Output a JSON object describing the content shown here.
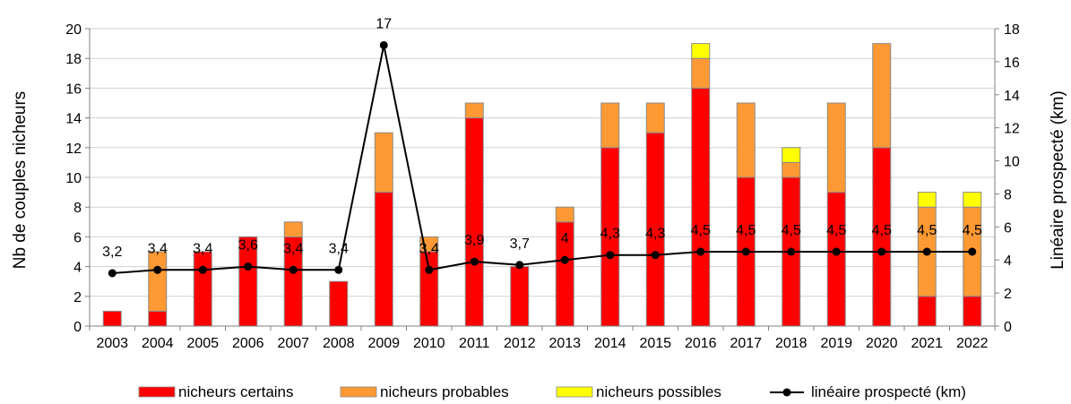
{
  "chart_data": {
    "type": "bar",
    "stacked": true,
    "categories": [
      "2003",
      "2004",
      "2005",
      "2006",
      "2007",
      "2008",
      "2009",
      "2010",
      "2011",
      "2012",
      "2013",
      "2014",
      "2015",
      "2016",
      "2017",
      "2018",
      "2019",
      "2020",
      "2021",
      "2022"
    ],
    "series": [
      {
        "name": "nicheurs certains",
        "type": "bar",
        "axis": "left",
        "color": "#ff0000",
        "values": [
          1,
          1,
          5,
          6,
          6,
          3,
          9,
          5,
          14,
          4,
          7,
          12,
          13,
          16,
          10,
          10,
          9,
          12,
          2,
          2
        ]
      },
      {
        "name": "nicheurs probables",
        "type": "bar",
        "axis": "left",
        "color": "#ff9933",
        "values": [
          0,
          4,
          0,
          0,
          1,
          0,
          4,
          1,
          1,
          0,
          1,
          3,
          2,
          2,
          5,
          1,
          6,
          7,
          6,
          6
        ]
      },
      {
        "name": "nicheurs possibles",
        "type": "bar",
        "axis": "left",
        "color": "#ffff00",
        "values": [
          0,
          0,
          0,
          0,
          0,
          0,
          0,
          0,
          0,
          0,
          0,
          0,
          0,
          1,
          0,
          1,
          0,
          0,
          1,
          1
        ]
      },
      {
        "name": "linéaire prospecté (km)",
        "type": "line",
        "axis": "right",
        "color": "#000000",
        "values": [
          3.2,
          3.4,
          3.4,
          3.6,
          3.4,
          3.4,
          17,
          3.4,
          3.9,
          3.7,
          4,
          4.3,
          4.3,
          4.5,
          4.5,
          4.5,
          4.5,
          4.5,
          4.5,
          4.5
        ],
        "labels": [
          "3,2",
          "3,4",
          "3,4",
          "3,6",
          "3,4",
          "3,4",
          "17",
          "3,4",
          "3,9",
          "3,7",
          "4",
          "4,3",
          "4,3",
          "4,5",
          "4,5",
          "4,5",
          "4,5",
          "4,5",
          "4,5",
          "4,5"
        ]
      }
    ],
    "ylabel": "Nb de couples nicheurs",
    "y2label": "Linéaire prospecté (km)",
    "ylim": [
      0,
      20
    ],
    "y2lim": [
      0,
      18
    ],
    "yticks": [
      "0",
      "2",
      "4",
      "6",
      "8",
      "10",
      "12",
      "14",
      "16",
      "18",
      "20"
    ],
    "y2ticks": [
      "0",
      "2",
      "4",
      "6",
      "8",
      "10",
      "12",
      "14",
      "16",
      "18"
    ],
    "grid": true,
    "legend_position": "bottom"
  }
}
